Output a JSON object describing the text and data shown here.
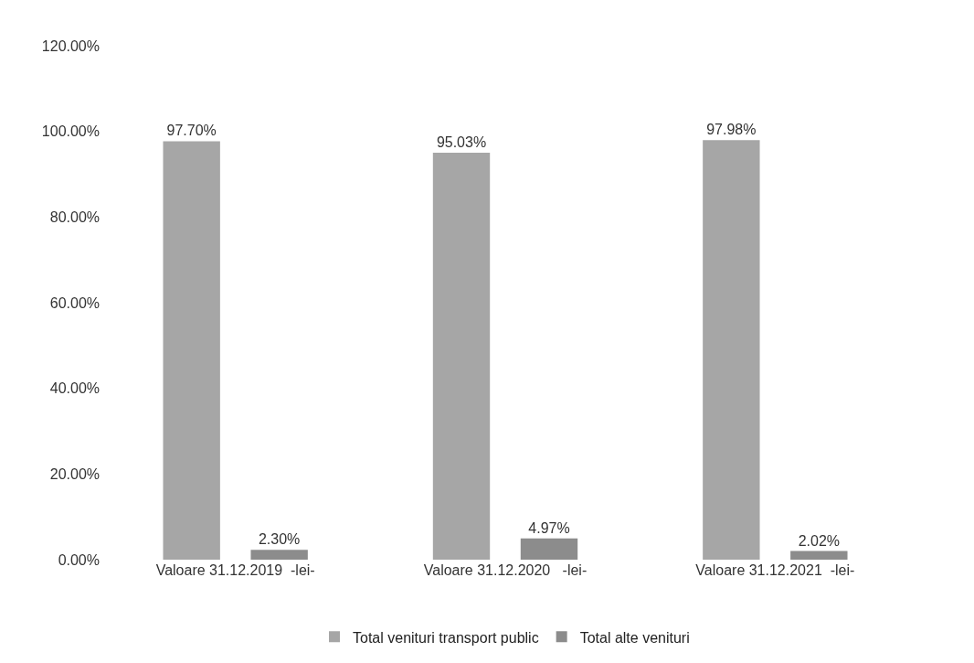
{
  "chart_data": {
    "type": "bar",
    "categories": [
      "Valoare 31.12.2019  -lei-",
      "Valoare 31.12.2020   -lei-",
      "Valoare 31.12.2021  -lei-"
    ],
    "series": [
      {
        "name": "Total venituri transport public",
        "color": "#a6a6a6",
        "values": [
          97.7,
          95.03,
          97.98
        ],
        "value_labels": [
          "97.70%",
          "95.03%",
          "97.98%"
        ]
      },
      {
        "name": "Total alte venituri",
        "color": "#8c8c8c",
        "values": [
          2.3,
          4.97,
          2.02
        ],
        "value_labels": [
          "2.30%",
          "4.97%",
          "2.02%"
        ]
      }
    ],
    "ylim": [
      0,
      120
    ],
    "yticks": [
      {
        "value": 0,
        "label": "0.00%"
      },
      {
        "value": 20,
        "label": "20.00%"
      },
      {
        "value": 40,
        "label": "40.00%"
      },
      {
        "value": 60,
        "label": "60.00%"
      },
      {
        "value": 80,
        "label": "80.00%"
      },
      {
        "value": 100,
        "label": "100.00%"
      },
      {
        "value": 120,
        "label": "120.00%"
      }
    ],
    "legend": "bottom"
  }
}
